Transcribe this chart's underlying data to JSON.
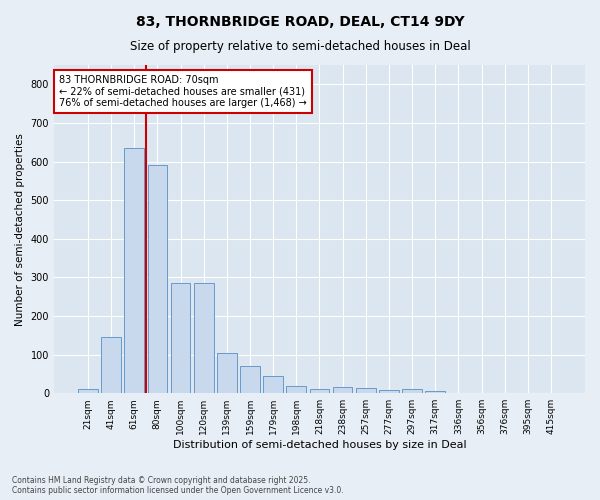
{
  "title": "83, THORNBRIDGE ROAD, DEAL, CT14 9DY",
  "subtitle": "Size of property relative to semi-detached houses in Deal",
  "xlabel": "Distribution of semi-detached houses by size in Deal",
  "ylabel": "Number of semi-detached properties",
  "categories": [
    "21sqm",
    "41sqm",
    "61sqm",
    "80sqm",
    "100sqm",
    "120sqm",
    "139sqm",
    "159sqm",
    "179sqm",
    "198sqm",
    "218sqm",
    "238sqm",
    "257sqm",
    "277sqm",
    "297sqm",
    "317sqm",
    "336sqm",
    "356sqm",
    "376sqm",
    "395sqm",
    "415sqm"
  ],
  "values": [
    12,
    145,
    635,
    590,
    285,
    285,
    105,
    70,
    45,
    18,
    10,
    15,
    14,
    8,
    10,
    5,
    0,
    0,
    0,
    0,
    0
  ],
  "bar_color": "#c8d9ee",
  "bar_edge_color": "#6699cc",
  "property_line_color": "#cc0000",
  "property_line_index": 2.5,
  "annotation_text": "83 THORNBRIDGE ROAD: 70sqm\n← 22% of semi-detached houses are smaller (431)\n76% of semi-detached houses are larger (1,468) →",
  "annotation_box_facecolor": "#ffffff",
  "annotation_box_edgecolor": "#cc0000",
  "footnote": "Contains HM Land Registry data © Crown copyright and database right 2025.\nContains public sector information licensed under the Open Government Licence v3.0.",
  "ylim": [
    0,
    850
  ],
  "yticks": [
    0,
    100,
    200,
    300,
    400,
    500,
    600,
    700,
    800
  ],
  "fig_background": "#e8eef5",
  "plot_background": "#dce6f0"
}
